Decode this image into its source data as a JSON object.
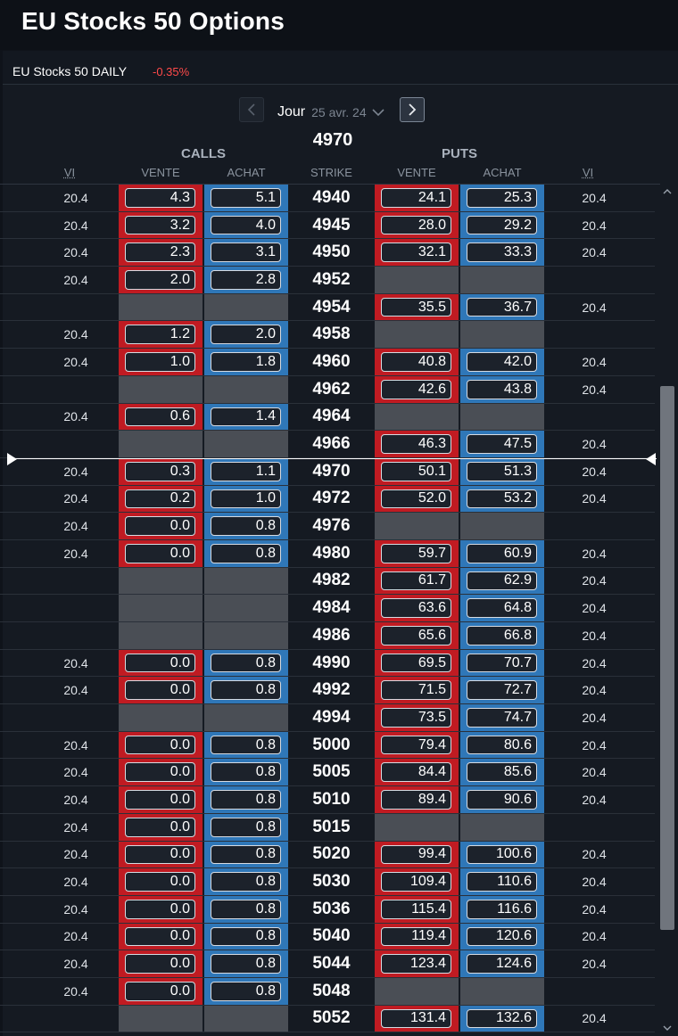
{
  "app_title": "EU Stocks 50 Options",
  "instrument": {
    "name": "EU Stocks 50 DAILY",
    "change": "-0.35%",
    "change_color": "#ff4a4a"
  },
  "expiry": {
    "label": "Jour",
    "date": "25 avr. 24"
  },
  "spot": "4970",
  "headers": {
    "calls": "CALLS",
    "puts": "PUTS",
    "vi": "VI",
    "vente": "VENTE",
    "achat": "ACHAT",
    "strike": "STRIKE"
  },
  "colors": {
    "sell": "#c01b22",
    "buy": "#2f77b8",
    "empty": "#4a4e55"
  },
  "icons": {
    "prev": "chevron-left-icon",
    "next": "chevron-right-icon",
    "expiry_dropdown": "chevron-down-icon",
    "scroll_up": "chevron-up-icon",
    "scroll_down": "chevron-down-icon"
  },
  "rows": [
    {
      "strike": "4940",
      "call_vi": "20.4",
      "call_vente": "4.3",
      "call_achat": "5.1",
      "put_vente": "24.1",
      "put_achat": "25.3",
      "put_vi": "20.4"
    },
    {
      "strike": "4945",
      "call_vi": "20.4",
      "call_vente": "3.2",
      "call_achat": "4.0",
      "put_vente": "28.0",
      "put_achat": "29.2",
      "put_vi": "20.4"
    },
    {
      "strike": "4950",
      "call_vi": "20.4",
      "call_vente": "2.3",
      "call_achat": "3.1",
      "put_vente": "32.1",
      "put_achat": "33.3",
      "put_vi": "20.4"
    },
    {
      "strike": "4952",
      "call_vi": "20.4",
      "call_vente": "2.0",
      "call_achat": "2.8",
      "put_vente": null,
      "put_achat": null,
      "put_vi": ""
    },
    {
      "strike": "4954",
      "call_vi": "",
      "call_vente": null,
      "call_achat": null,
      "put_vente": "35.5",
      "put_achat": "36.7",
      "put_vi": "20.4"
    },
    {
      "strike": "4958",
      "call_vi": "20.4",
      "call_vente": "1.2",
      "call_achat": "2.0",
      "put_vente": null,
      "put_achat": null,
      "put_vi": ""
    },
    {
      "strike": "4960",
      "call_vi": "20.4",
      "call_vente": "1.0",
      "call_achat": "1.8",
      "put_vente": "40.8",
      "put_achat": "42.0",
      "put_vi": "20.4"
    },
    {
      "strike": "4962",
      "call_vi": "",
      "call_vente": null,
      "call_achat": null,
      "put_vente": "42.6",
      "put_achat": "43.8",
      "put_vi": "20.4"
    },
    {
      "strike": "4964",
      "call_vi": "20.4",
      "call_vente": "0.6",
      "call_achat": "1.4",
      "put_vente": null,
      "put_achat": null,
      "put_vi": ""
    },
    {
      "strike": "4966",
      "call_vi": "",
      "call_vente": null,
      "call_achat": null,
      "put_vente": "46.3",
      "put_achat": "47.5",
      "put_vi": "20.4"
    },
    {
      "strike": "4970",
      "call_vi": "20.4",
      "call_vente": "0.3",
      "call_achat": "1.1",
      "put_vente": "50.1",
      "put_achat": "51.3",
      "put_vi": "20.4"
    },
    {
      "strike": "4972",
      "call_vi": "20.4",
      "call_vente": "0.2",
      "call_achat": "1.0",
      "put_vente": "52.0",
      "put_achat": "53.2",
      "put_vi": "20.4"
    },
    {
      "strike": "4976",
      "call_vi": "20.4",
      "call_vente": "0.0",
      "call_achat": "0.8",
      "put_vente": null,
      "put_achat": null,
      "put_vi": ""
    },
    {
      "strike": "4980",
      "call_vi": "20.4",
      "call_vente": "0.0",
      "call_achat": "0.8",
      "put_vente": "59.7",
      "put_achat": "60.9",
      "put_vi": "20.4"
    },
    {
      "strike": "4982",
      "call_vi": "",
      "call_vente": null,
      "call_achat": null,
      "put_vente": "61.7",
      "put_achat": "62.9",
      "put_vi": "20.4"
    },
    {
      "strike": "4984",
      "call_vi": "",
      "call_vente": null,
      "call_achat": null,
      "put_vente": "63.6",
      "put_achat": "64.8",
      "put_vi": "20.4"
    },
    {
      "strike": "4986",
      "call_vi": "",
      "call_vente": null,
      "call_achat": null,
      "put_vente": "65.6",
      "put_achat": "66.8",
      "put_vi": "20.4"
    },
    {
      "strike": "4990",
      "call_vi": "20.4",
      "call_vente": "0.0",
      "call_achat": "0.8",
      "put_vente": "69.5",
      "put_achat": "70.7",
      "put_vi": "20.4"
    },
    {
      "strike": "4992",
      "call_vi": "20.4",
      "call_vente": "0.0",
      "call_achat": "0.8",
      "put_vente": "71.5",
      "put_achat": "72.7",
      "put_vi": "20.4"
    },
    {
      "strike": "4994",
      "call_vi": "",
      "call_vente": null,
      "call_achat": null,
      "put_vente": "73.5",
      "put_achat": "74.7",
      "put_vi": "20.4"
    },
    {
      "strike": "5000",
      "call_vi": "20.4",
      "call_vente": "0.0",
      "call_achat": "0.8",
      "put_vente": "79.4",
      "put_achat": "80.6",
      "put_vi": "20.4"
    },
    {
      "strike": "5005",
      "call_vi": "20.4",
      "call_vente": "0.0",
      "call_achat": "0.8",
      "put_vente": "84.4",
      "put_achat": "85.6",
      "put_vi": "20.4"
    },
    {
      "strike": "5010",
      "call_vi": "20.4",
      "call_vente": "0.0",
      "call_achat": "0.8",
      "put_vente": "89.4",
      "put_achat": "90.6",
      "put_vi": "20.4"
    },
    {
      "strike": "5015",
      "call_vi": "20.4",
      "call_vente": "0.0",
      "call_achat": "0.8",
      "put_vente": null,
      "put_achat": null,
      "put_vi": ""
    },
    {
      "strike": "5020",
      "call_vi": "20.4",
      "call_vente": "0.0",
      "call_achat": "0.8",
      "put_vente": "99.4",
      "put_achat": "100.6",
      "put_vi": "20.4"
    },
    {
      "strike": "5030",
      "call_vi": "20.4",
      "call_vente": "0.0",
      "call_achat": "0.8",
      "put_vente": "109.4",
      "put_achat": "110.6",
      "put_vi": "20.4"
    },
    {
      "strike": "5036",
      "call_vi": "20.4",
      "call_vente": "0.0",
      "call_achat": "0.8",
      "put_vente": "115.4",
      "put_achat": "116.6",
      "put_vi": "20.4"
    },
    {
      "strike": "5040",
      "call_vi": "20.4",
      "call_vente": "0.0",
      "call_achat": "0.8",
      "put_vente": "119.4",
      "put_achat": "120.6",
      "put_vi": "20.4"
    },
    {
      "strike": "5044",
      "call_vi": "20.4",
      "call_vente": "0.0",
      "call_achat": "0.8",
      "put_vente": "123.4",
      "put_achat": "124.6",
      "put_vi": "20.4"
    },
    {
      "strike": "5048",
      "call_vi": "20.4",
      "call_vente": "0.0",
      "call_achat": "0.8",
      "put_vente": null,
      "put_achat": null,
      "put_vi": ""
    },
    {
      "strike": "5052",
      "call_vi": "",
      "call_vente": null,
      "call_achat": null,
      "put_vente": "131.4",
      "put_achat": "132.6",
      "put_vi": "20.4"
    }
  ]
}
